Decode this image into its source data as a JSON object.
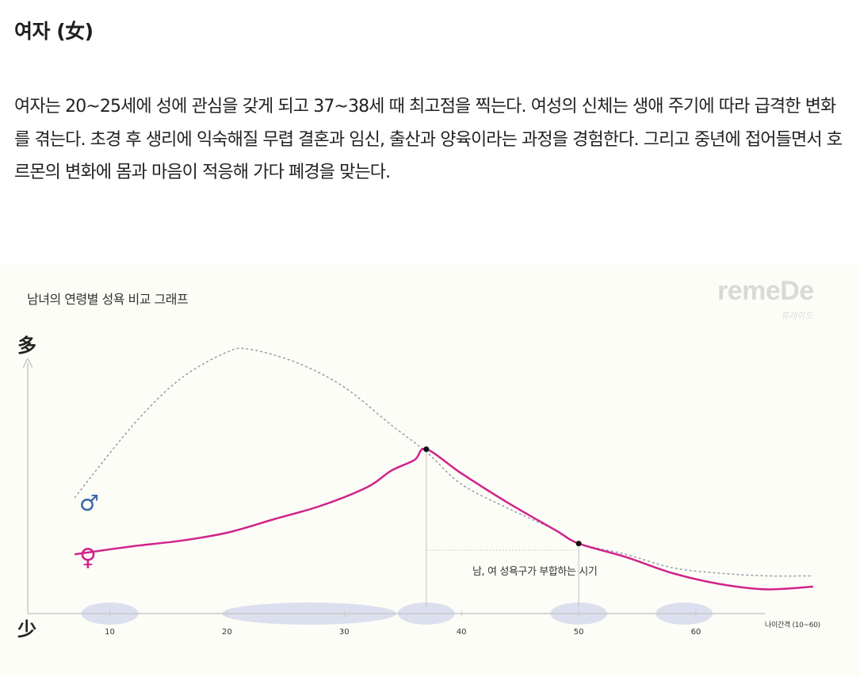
{
  "article": {
    "heading": "여자 (女)",
    "paragraph": "여자는 20~25세에 성에 관심을 갖게 되고 37~38세 때 최고점을 찍는다. 여성의 신체는 생애 주기에 따라 급격한 변화를 겪는다. 초경 후 생리에 익숙해질 무렵 결혼과 임신, 출산과 양육이라는 과정을 경험한다. 그리고 중년에 접어들면서 호르몬의 변화에 몸과 마음이 적응해 가다 폐경을 맞는다."
  },
  "brand": {
    "name": "remeDe",
    "sub": "휴레이드"
  },
  "chart_data": {
    "type": "line",
    "title": "남녀의 연령별 성욕 비교 그래프",
    "y_high_label": "多",
    "y_low_label": "少",
    "xlabel": "나이간격 (10~60)",
    "x_ticks": [
      "10",
      "20",
      "30",
      "40",
      "50",
      "60"
    ],
    "xlim": [
      3,
      74
    ],
    "ylim": [
      0,
      100
    ],
    "series": [
      {
        "name": "♂",
        "color": "#9a9aaa",
        "dashed": true,
        "x": [
          7,
          12,
          16,
          20,
          22,
          26,
          30,
          34,
          37,
          40,
          44,
          48,
          50,
          54,
          58,
          62,
          66,
          70
        ],
        "y": [
          43,
          70,
          87,
          97,
          98,
          93,
          84,
          70,
          60,
          48,
          39,
          31,
          26,
          22,
          17,
          15,
          14,
          14
        ]
      },
      {
        "name": "♀",
        "color": "#d0238a",
        "dashed": false,
        "x": [
          7,
          12,
          16,
          20,
          24,
          28,
          32,
          34,
          36,
          37,
          40,
          44,
          48,
          50,
          54,
          58,
          62,
          66,
          70
        ],
        "y": [
          22,
          25,
          27,
          30,
          35,
          40,
          47,
          53,
          57,
          61,
          52,
          41,
          31,
          26,
          21,
          15,
          11,
          9,
          10
        ]
      }
    ],
    "markers": [
      {
        "x": 37,
        "y": 61
      },
      {
        "x": 50,
        "y": 26
      }
    ],
    "annotation": {
      "text": "남, 여 성욕구가 부합하는 시기",
      "x_start": 37,
      "x_end": 50
    },
    "highlight_x": [
      10,
      27,
      37,
      50,
      59
    ],
    "highlight_color": "#d8dbec",
    "grid": false,
    "legend": "none"
  }
}
